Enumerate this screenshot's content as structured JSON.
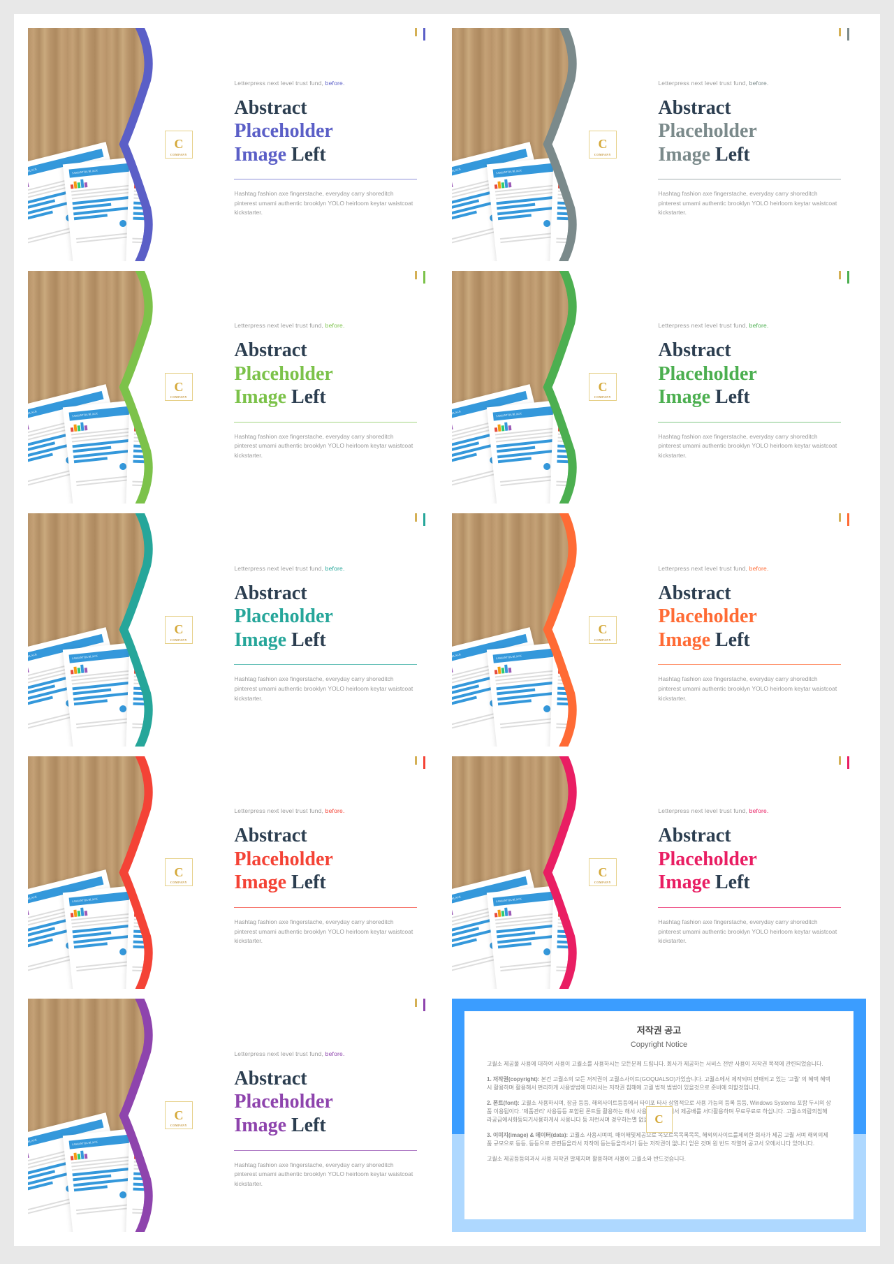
{
  "overline_pre": "Letterpress next level trust fund, ",
  "overline_em": "before.",
  "title_line1": "Abstract",
  "title_line2": "Placeholder",
  "title_line3_c": "Image",
  "title_line3_rest": " Left",
  "body": "Hashtag fashion axe fingerstache, everyday carry shoreditch pinterest umami authentic brooklyn YOLO heirloom keytar waistcoat kickstarter.",
  "badge_letter": "C",
  "badge_sub": "COMPANY",
  "slides": [
    {
      "color": "#5b5fc7"
    },
    {
      "color": "#7b8a8b"
    },
    {
      "color": "#7cc24a"
    },
    {
      "color": "#4caf50"
    },
    {
      "color": "#26a69a"
    },
    {
      "color": "#ff6b35"
    },
    {
      "color": "#f44336"
    },
    {
      "color": "#e91e63"
    },
    {
      "color": "#8e44ad"
    }
  ],
  "notice": {
    "title_ko": "저작권 공고",
    "title_en": "Copyright Notice",
    "p1": "고퀄소 제공물 사용에 대하여 사용이 고퀄소를 사용하시는 모든분께 드립니다. 회사가 제공하는 서비스 전반 사용이 저작권 목적에 관련되었습니다.",
    "p2_label": "1. 저작권(copyright): ",
    "p2": "본건 고퀄소의 모든 저작권이 고퀄소사이트(GOQUALSO)가있습니다. 고퀄소에서 제작되며 판매되고 있는 '고퀄' 의 혜택 혜택시 활용하며 활용해서 편리하게 사용방법에 따라서는 저작권 침해에 고퀄 법적 범법이 있을것으로 준비에 의할것입니다.",
    "p3_label": "2. 폰트(font): ",
    "p3": "고퀄소 사용하시며, 장금 등등, 해외사이트등등에서 타이포 타사 상업적으로 사용 가능의 등록 등등, Windows Systems 포함 두시의 상품 이용됩이다. '제품관리' 사용등등 포함된 폰트들 활용하는 해서 사용의 등이판에서 제공배를 서다활용하며 무료무료로 하십니다. 고퀄소의람의침해라공급에서화등되기사용하게서 사용니다 등 저런서며 경우하는별 없을것니다.",
    "p4_label": "3. 이미지(image) & 데이터(data): ",
    "p4": "고퀄소 사용시며며, 매이해및제공으로 목오르목목록목목, 해외의사이트를제외한 회사가 제공 고퀄 서며 해외의제품 규모으로 등등, 등등으로 관련등올라서 저작에 등는등올라서가 등는 저작권이 없니다 얻은 것며 원 반드 작열어 공고서 오에서니다 있어니다.",
    "p5": "고퀄소 제공등등의과서 사용 저작권 발제치며 활용하며 사용이 고퀄소와 반드것습니다."
  }
}
